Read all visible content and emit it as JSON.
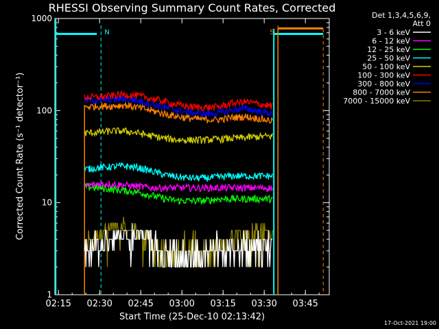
{
  "chart_data": {
    "type": "line",
    "title": "RHESSI Observing Summary Count Rates, Corrected",
    "xlabel": "Start Time (25-Dec-10 02:13:42)",
    "ylabel": "Corrected Count Rate (s⁻¹ detector⁻¹)",
    "footer": "17-Oct-2021 19:00",
    "legend_header": [
      "Det 1,3,4,5,6,9,",
      "Att 0"
    ],
    "legend_position": "right",
    "y_scale": "log",
    "ylim": [
      1,
      1000
    ],
    "xlim": [
      "02:13:42",
      "03:53:42"
    ],
    "x_ticks": [
      "02:15",
      "02:30",
      "02:45",
      "03:00",
      "03:15",
      "03:30",
      "03:45"
    ],
    "y_ticks": [
      "1",
      "10",
      "100",
      "1000"
    ],
    "markers": [
      {
        "label": "N",
        "time": "02:30:30",
        "color": "#00ffff"
      },
      {
        "label": "S",
        "time": "03:35:00",
        "color": "#ff8000"
      }
    ],
    "bars": [
      {
        "color": "#00ffff",
        "level": 680,
        "ranges": [
          [
            "02:13:42",
            "02:29:00"
          ],
          [
            "03:33:30",
            "03:51:30"
          ]
        ]
      },
      {
        "color": "#ff8000",
        "level": 780,
        "ranges": [
          [
            "03:35:00",
            "03:51:30"
          ]
        ]
      }
    ],
    "data_start": "02:24:30",
    "data_end": "03:33:00",
    "series": [
      {
        "name": "3 - 6 keV",
        "color": "#ffffff",
        "values": [
          3,
          3,
          4,
          4.5,
          4.5,
          4,
          2.8,
          2.6,
          2.5,
          2.6,
          2.8,
          3.3,
          3.3,
          3.2,
          3.1
        ]
      },
      {
        "name": "6 - 12 keV",
        "color": "#ff00ff",
        "values": [
          15,
          16,
          16,
          15.5,
          15,
          14.5,
          14.5,
          14.5,
          14.5,
          14.5,
          14.5,
          14.5,
          14.5,
          14.5,
          14.5
        ]
      },
      {
        "name": "12 - 25 keV",
        "color": "#00ff00",
        "values": [
          15,
          14.5,
          14,
          13.5,
          13,
          12,
          11,
          10.5,
          10.5,
          10.5,
          11,
          11,
          11,
          11,
          11
        ]
      },
      {
        "name": "25 - 50 keV",
        "color": "#00ffff",
        "values": [
          23,
          24,
          24.5,
          25,
          24,
          22,
          20,
          19,
          18.5,
          18.5,
          19,
          19.5,
          19.5,
          19.5,
          19.5
        ]
      },
      {
        "name": "50 - 100 keV",
        "color": "#d4d000",
        "values": [
          57,
          58,
          60,
          60,
          57,
          53,
          50,
          48,
          48,
          48,
          49,
          50,
          51,
          52,
          53
        ]
      },
      {
        "name": "100 - 300 keV",
        "color": "#ff0000",
        "values": [
          140,
          140,
          145,
          150,
          145,
          135,
          125,
          115,
          110,
          108,
          110,
          120,
          125,
          118,
          112
        ]
      },
      {
        "name": "300 - 800 keV",
        "color": "#0000ff",
        "values": [
          130,
          130,
          132,
          135,
          128,
          118,
          108,
          100,
          95,
          92,
          94,
          102,
          105,
          98,
          92
        ]
      },
      {
        "name": "800 - 7000 keV",
        "color": "#ff8000",
        "values": [
          110,
          112,
          112,
          115,
          108,
          100,
          92,
          86,
          82,
          80,
          80,
          84,
          86,
          82,
          77
        ]
      },
      {
        "name": "7000 - 15000 keV",
        "color": "#8b8000",
        "values": [
          3.5,
          4.5,
          5.5,
          5.5,
          4.5,
          3.5,
          3,
          2.8,
          2.5,
          2.6,
          3,
          4,
          5,
          5,
          4.5
        ]
      }
    ]
  }
}
